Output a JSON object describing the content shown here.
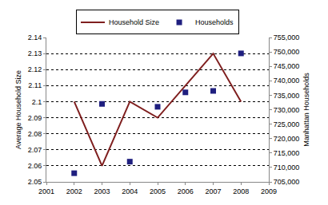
{
  "chart_data": {
    "type": "line",
    "x": [
      2002,
      2003,
      2004,
      2005,
      2006,
      2007,
      2008
    ],
    "xlim": [
      2001,
      2009
    ],
    "xticks": [
      2001,
      2002,
      2003,
      2004,
      2005,
      2006,
      2007,
      2008,
      2009
    ],
    "y_label": "Average Household Size",
    "y2_label": "Manhattan Households",
    "ylim": [
      2.05,
      2.14
    ],
    "yticks": [
      2.05,
      2.06,
      2.07,
      2.08,
      2.09,
      2.1,
      2.11,
      2.12,
      2.13,
      2.14
    ],
    "y2lim": [
      705000,
      755000
    ],
    "y2ticks": [
      {
        "value": 705000,
        "label": "705,000"
      },
      {
        "value": 710000,
        "label": "710,000"
      },
      {
        "value": 715000,
        "label": "715,000"
      },
      {
        "value": 720000,
        "label": "720,000"
      },
      {
        "value": 725000,
        "label": "725,000"
      },
      {
        "value": 730000,
        "label": "730,000"
      },
      {
        "value": 735000,
        "label": "735,000"
      },
      {
        "value": 740000,
        "label": "740,000"
      },
      {
        "value": 745000,
        "label": "745,000"
      },
      {
        "value": 750000,
        "label": "750,000"
      },
      {
        "value": 755000,
        "label": "755,000"
      }
    ],
    "grid": true,
    "legend": "top",
    "series": [
      {
        "name": "Household Size",
        "type": "line",
        "color": "#7f1f1f",
        "values": [
          2.1,
          2.06,
          2.1,
          2.09,
          2.11,
          2.13,
          2.1
        ]
      },
      {
        "name": "Households",
        "type": "scatter",
        "marker": "square",
        "axis": "y2",
        "color": "#1f1f7f",
        "values": [
          708000,
          732000,
          712000,
          731000,
          736000,
          736500,
          749500
        ]
      }
    ]
  }
}
